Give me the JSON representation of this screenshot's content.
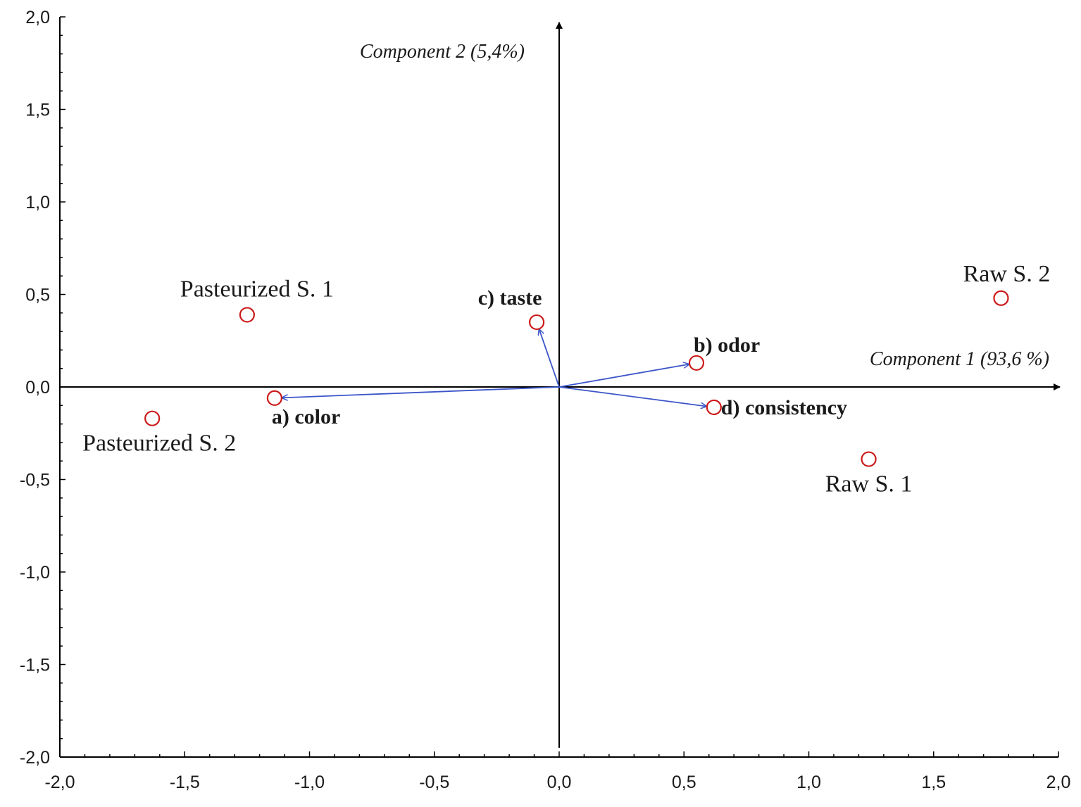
{
  "chart_data": {
    "type": "scatter",
    "title": "",
    "xlim": [
      -2.0,
      2.0
    ],
    "ylim": [
      -2.0,
      2.0
    ],
    "x_ticks": [
      "-2,0",
      "-1,5",
      "-1,0",
      "-0,5",
      "0,0",
      "0,5",
      "1,0",
      "1,5",
      "2,0"
    ],
    "y_ticks": [
      "2,0",
      "1,5",
      "1,0",
      "0,5",
      "0,0",
      "-0,5",
      "-1,0",
      "-1,5",
      "-2,0"
    ],
    "x_axis_title": "Component 1 (93,6 %)",
    "y_axis_title": "Component 2 (5,4%)",
    "grid": false,
    "marker_color": "#cc1a1a",
    "vector_color": "#3b55c9",
    "scores": [
      {
        "label": "Pasteurized S. 1",
        "x": -1.25,
        "y": 0.39
      },
      {
        "label": "Pasteurized S. 2",
        "x": -1.63,
        "y": -0.17
      },
      {
        "label": "Raw S. 1",
        "x": 1.24,
        "y": -0.39
      },
      {
        "label": "Raw S. 2",
        "x": 1.77,
        "y": 0.48
      }
    ],
    "loadings": [
      {
        "label": "a) color",
        "x": -1.14,
        "y": -0.06
      },
      {
        "label": "b) odor",
        "x": 0.55,
        "y": 0.13
      },
      {
        "label": "c) taste",
        "x": -0.09,
        "y": 0.35
      },
      {
        "label": "d) consistency",
        "x": 0.62,
        "y": -0.11
      }
    ]
  }
}
